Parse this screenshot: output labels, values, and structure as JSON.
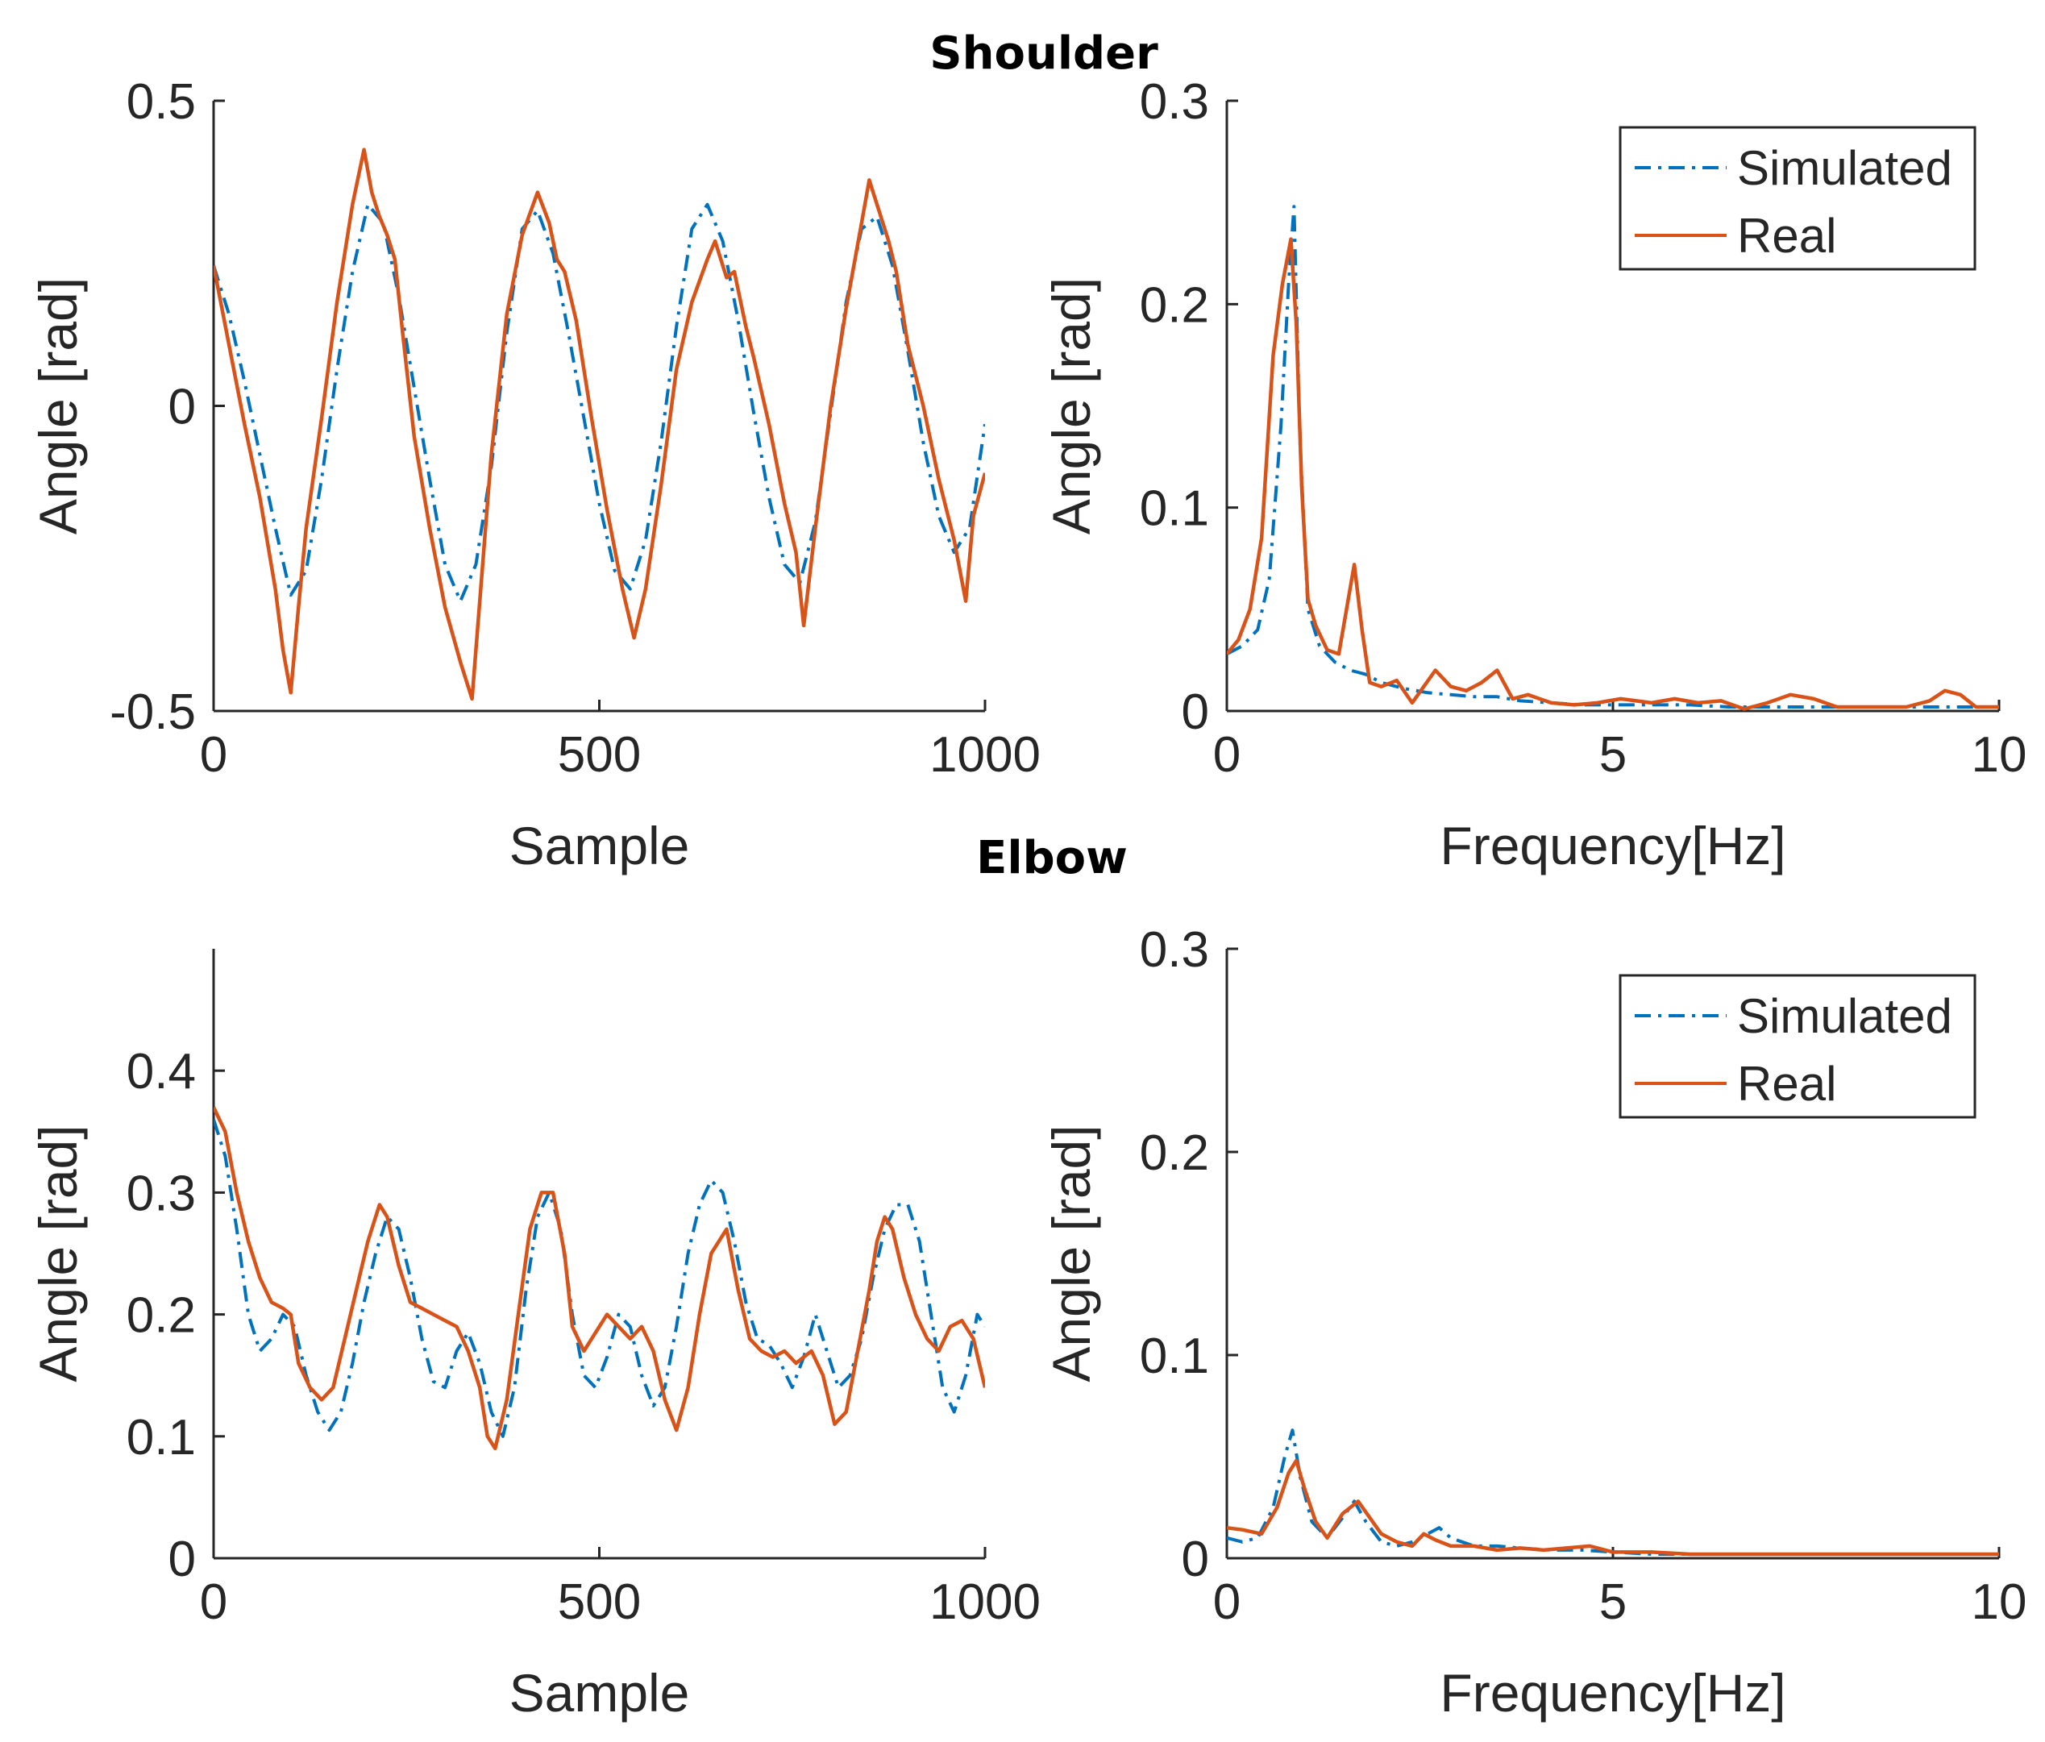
{
  "section_titles": [
    "Shoulder",
    "Elbow"
  ],
  "colors": {
    "simulated": "#0072BD",
    "real": "#D95319",
    "axis": "#262626"
  },
  "chart_data": [
    {
      "id": "shoulder-time",
      "type": "line",
      "xlabel": "Sample",
      "ylabel": "Angle [rad]",
      "xlim": [
        0,
        1000
      ],
      "ylim": [
        -0.5,
        0.5
      ],
      "xticks": [
        0,
        500,
        1000
      ],
      "xtick_labels": [
        "0",
        "500",
        "1000"
      ],
      "yticks": [
        -0.5,
        0,
        0.5
      ],
      "ytick_labels": [
        "-0.5",
        "0",
        "0.5"
      ],
      "grid": false,
      "legend": null,
      "series": [
        {
          "name": "Simulated",
          "style": "dashdot",
          "x": [
            0,
            20,
            40,
            60,
            80,
            100,
            120,
            140,
            160,
            180,
            200,
            220,
            240,
            260,
            280,
            300,
            320,
            340,
            360,
            380,
            400,
            420,
            440,
            460,
            480,
            500,
            520,
            540,
            560,
            580,
            600,
            620,
            640,
            660,
            680,
            700,
            720,
            740,
            760,
            780,
            800,
            820,
            840,
            860,
            880,
            900,
            920,
            940,
            960,
            980,
            1000
          ],
          "y": [
            0.23,
            0.15,
            0.04,
            -0.08,
            -0.2,
            -0.31,
            -0.27,
            -0.12,
            0.06,
            0.22,
            0.33,
            0.3,
            0.18,
            0.03,
            -0.12,
            -0.26,
            -0.32,
            -0.26,
            -0.1,
            0.12,
            0.29,
            0.32,
            0.25,
            0.12,
            -0.02,
            -0.16,
            -0.27,
            -0.3,
            -0.22,
            -0.06,
            0.13,
            0.29,
            0.33,
            0.27,
            0.14,
            -0.01,
            -0.15,
            -0.26,
            -0.29,
            -0.19,
            -0.01,
            0.17,
            0.29,
            0.31,
            0.23,
            0.09,
            -0.06,
            -0.18,
            -0.24,
            -0.2,
            -0.03
          ]
        },
        {
          "name": "Real",
          "style": "solid",
          "x": [
            0,
            20,
            40,
            60,
            80,
            90,
            100,
            110,
            120,
            140,
            160,
            180,
            195,
            205,
            215,
            225,
            235,
            245,
            260,
            280,
            300,
            320,
            335,
            345,
            360,
            380,
            400,
            420,
            435,
            445,
            455,
            470,
            490,
            510,
            530,
            545,
            560,
            580,
            600,
            620,
            640,
            650,
            665,
            675,
            690,
            700,
            720,
            740,
            755,
            765,
            780,
            800,
            820,
            840,
            850,
            860,
            875,
            885,
            900,
            920,
            940,
            960,
            975,
            985,
            1000
          ],
          "y": [
            0.23,
            0.1,
            -0.03,
            -0.15,
            -0.3,
            -0.4,
            -0.47,
            -0.33,
            -0.2,
            -0.02,
            0.17,
            0.33,
            0.42,
            0.35,
            0.31,
            0.28,
            0.24,
            0.12,
            -0.05,
            -0.2,
            -0.33,
            -0.42,
            -0.48,
            -0.32,
            -0.08,
            0.15,
            0.28,
            0.35,
            0.3,
            0.24,
            0.22,
            0.14,
            -0.02,
            -0.17,
            -0.3,
            -0.38,
            -0.3,
            -0.13,
            0.06,
            0.17,
            0.24,
            0.27,
            0.21,
            0.22,
            0.13,
            0.08,
            -0.03,
            -0.16,
            -0.24,
            -0.36,
            -0.2,
            0.0,
            0.16,
            0.3,
            0.37,
            0.33,
            0.27,
            0.22,
            0.1,
            0.0,
            -0.12,
            -0.22,
            -0.32,
            -0.18,
            -0.11
          ]
        }
      ]
    },
    {
      "id": "shoulder-freq",
      "type": "line",
      "xlabel": "Frequency[Hz]",
      "ylabel": "Angle [rad]",
      "xlim": [
        0,
        10
      ],
      "ylim": [
        0,
        0.3
      ],
      "xticks": [
        0,
        5,
        10
      ],
      "xtick_labels": [
        "0",
        "5",
        "10"
      ],
      "yticks": [
        0,
        0.1,
        0.2,
        0.3
      ],
      "ytick_labels": [
        "0",
        "0.1",
        "0.2",
        "0.3"
      ],
      "grid": false,
      "legend": "top-right",
      "series": [
        {
          "name": "Simulated",
          "style": "dashdot",
          "x": [
            0,
            0.2,
            0.4,
            0.55,
            0.7,
            0.8,
            0.87,
            0.95,
            1.05,
            1.2,
            1.4,
            1.6,
            1.8,
            2.0,
            2.3,
            2.6,
            2.9,
            3.2,
            3.5,
            3.8,
            4.2,
            4.6,
            5.0,
            5.5,
            6.0,
            6.5,
            7.0,
            7.5,
            8.0,
            8.5,
            9.0,
            9.5,
            10
          ],
          "y": [
            0.028,
            0.032,
            0.04,
            0.065,
            0.14,
            0.21,
            0.248,
            0.13,
            0.05,
            0.032,
            0.024,
            0.02,
            0.018,
            0.014,
            0.011,
            0.009,
            0.008,
            0.007,
            0.007,
            0.005,
            0.004,
            0.003,
            0.003,
            0.003,
            0.003,
            0.002,
            0.002,
            0.002,
            0.002,
            0.002,
            0.002,
            0.002,
            0.002
          ]
        },
        {
          "name": "Real",
          "style": "solid",
          "x": [
            0,
            0.15,
            0.3,
            0.45,
            0.6,
            0.72,
            0.83,
            0.9,
            0.97,
            1.05,
            1.15,
            1.3,
            1.45,
            1.55,
            1.65,
            1.75,
            1.85,
            2.0,
            2.2,
            2.4,
            2.55,
            2.7,
            2.9,
            3.1,
            3.3,
            3.5,
            3.7,
            3.9,
            4.2,
            4.5,
            4.8,
            5.1,
            5.5,
            5.8,
            6.1,
            6.4,
            6.7,
            7.0,
            7.3,
            7.6,
            7.9,
            8.2,
            8.5,
            8.8,
            9.1,
            9.3,
            9.5,
            9.7,
            10
          ],
          "y": [
            0.028,
            0.035,
            0.05,
            0.085,
            0.175,
            0.21,
            0.232,
            0.19,
            0.11,
            0.055,
            0.042,
            0.03,
            0.028,
            0.05,
            0.072,
            0.04,
            0.014,
            0.012,
            0.015,
            0.004,
            0.012,
            0.02,
            0.012,
            0.01,
            0.014,
            0.02,
            0.006,
            0.008,
            0.004,
            0.003,
            0.004,
            0.006,
            0.004,
            0.006,
            0.004,
            0.005,
            0.001,
            0.004,
            0.008,
            0.006,
            0.002,
            0.002,
            0.002,
            0.002,
            0.005,
            0.01,
            0.008,
            0.002,
            0.002
          ]
        }
      ]
    },
    {
      "id": "elbow-time",
      "type": "line",
      "xlabel": "Sample",
      "ylabel": "Angle [rad]",
      "xlim": [
        0,
        1000
      ],
      "ylim": [
        0,
        0.5
      ],
      "xticks": [
        0,
        500,
        1000
      ],
      "xtick_labels": [
        "0",
        "500",
        "1000"
      ],
      "yticks": [
        0,
        0.1,
        0.2,
        0.3,
        0.4
      ],
      "ytick_labels": [
        "0",
        "0.1",
        "0.2",
        "0.3",
        "0.4"
      ],
      "grid": false,
      "legend": null,
      "series": [
        {
          "name": "Simulated",
          "style": "dashdot",
          "x": [
            0,
            15,
            30,
            45,
            60,
            75,
            90,
            105,
            120,
            135,
            150,
            165,
            180,
            195,
            210,
            225,
            240,
            255,
            270,
            285,
            300,
            315,
            330,
            345,
            360,
            375,
            390,
            405,
            420,
            435,
            450,
            465,
            480,
            495,
            510,
            525,
            540,
            555,
            570,
            585,
            600,
            615,
            630,
            645,
            660,
            675,
            690,
            705,
            720,
            735,
            750,
            765,
            780,
            795,
            810,
            825,
            840,
            855,
            870,
            885,
            900,
            915,
            930,
            945,
            960,
            975,
            990,
            1000
          ],
          "y": [
            0.36,
            0.33,
            0.27,
            0.2,
            0.17,
            0.18,
            0.2,
            0.19,
            0.15,
            0.12,
            0.105,
            0.12,
            0.16,
            0.21,
            0.25,
            0.28,
            0.27,
            0.23,
            0.18,
            0.145,
            0.14,
            0.17,
            0.185,
            0.16,
            0.12,
            0.1,
            0.14,
            0.22,
            0.28,
            0.3,
            0.27,
            0.2,
            0.15,
            0.14,
            0.165,
            0.2,
            0.19,
            0.15,
            0.125,
            0.14,
            0.19,
            0.25,
            0.29,
            0.31,
            0.3,
            0.26,
            0.21,
            0.18,
            0.175,
            0.16,
            0.14,
            0.165,
            0.2,
            0.17,
            0.14,
            0.15,
            0.18,
            0.23,
            0.27,
            0.29,
            0.29,
            0.26,
            0.2,
            0.14,
            0.12,
            0.15,
            0.2,
            0.19
          ]
        },
        {
          "name": "Real",
          "style": "solid",
          "x": [
            0,
            15,
            30,
            45,
            60,
            75,
            90,
            100,
            110,
            125,
            140,
            155,
            170,
            185,
            200,
            215,
            225,
            240,
            255,
            270,
            285,
            300,
            315,
            330,
            345,
            355,
            365,
            380,
            395,
            410,
            425,
            440,
            455,
            465,
            480,
            495,
            510,
            525,
            540,
            555,
            570,
            585,
            600,
            615,
            630,
            645,
            655,
            665,
            680,
            695,
            710,
            725,
            740,
            755,
            765,
            775,
            790,
            805,
            820,
            835,
            850,
            860,
            870,
            880,
            895,
            910,
            925,
            940,
            955,
            970,
            985,
            1000
          ],
          "y": [
            0.37,
            0.35,
            0.3,
            0.26,
            0.23,
            0.21,
            0.205,
            0.2,
            0.16,
            0.14,
            0.13,
            0.14,
            0.18,
            0.22,
            0.26,
            0.29,
            0.28,
            0.24,
            0.21,
            0.205,
            0.2,
            0.195,
            0.19,
            0.17,
            0.14,
            0.1,
            0.09,
            0.13,
            0.2,
            0.27,
            0.3,
            0.3,
            0.25,
            0.19,
            0.17,
            0.185,
            0.2,
            0.19,
            0.18,
            0.19,
            0.17,
            0.13,
            0.105,
            0.14,
            0.2,
            0.25,
            0.26,
            0.27,
            0.22,
            0.18,
            0.17,
            0.165,
            0.17,
            0.16,
            0.165,
            0.17,
            0.15,
            0.11,
            0.12,
            0.17,
            0.22,
            0.26,
            0.28,
            0.27,
            0.23,
            0.2,
            0.18,
            0.17,
            0.19,
            0.195,
            0.18,
            0.14
          ]
        }
      ]
    },
    {
      "id": "elbow-freq",
      "type": "line",
      "xlabel": "Frequency[Hz]",
      "ylabel": "Angle [rad]",
      "xlim": [
        0,
        10
      ],
      "ylim": [
        0,
        0.3
      ],
      "xticks": [
        0,
        5,
        10
      ],
      "xtick_labels": [
        "0",
        "5",
        "10"
      ],
      "yticks": [
        0,
        0.1,
        0.2,
        0.3
      ],
      "ytick_labels": [
        "0",
        "0.1",
        "0.2",
        "0.3"
      ],
      "grid": false,
      "legend": "top-right",
      "series": [
        {
          "name": "Simulated",
          "style": "dashdot",
          "x": [
            0,
            0.2,
            0.4,
            0.6,
            0.75,
            0.85,
            0.95,
            1.1,
            1.3,
            1.5,
            1.65,
            1.8,
            2.0,
            2.2,
            2.4,
            2.6,
            2.75,
            2.9,
            3.2,
            3.5,
            3.8,
            4.2,
            4.6,
            5.0,
            5.5,
            6.0,
            6.5,
            7.0,
            7.5,
            8.0,
            8.5,
            9.0,
            9.5,
            10
          ],
          "y": [
            0.01,
            0.008,
            0.01,
            0.025,
            0.05,
            0.063,
            0.04,
            0.018,
            0.01,
            0.02,
            0.028,
            0.018,
            0.008,
            0.006,
            0.008,
            0.012,
            0.015,
            0.01,
            0.006,
            0.006,
            0.005,
            0.004,
            0.004,
            0.003,
            0.002,
            0.002,
            0.002,
            0.002,
            0.002,
            0.002,
            0.002,
            0.002,
            0.002,
            0.002
          ]
        },
        {
          "name": "Real",
          "style": "solid",
          "x": [
            0,
            0.2,
            0.45,
            0.65,
            0.8,
            0.9,
            1.0,
            1.15,
            1.3,
            1.5,
            1.7,
            1.85,
            2.0,
            2.2,
            2.4,
            2.55,
            2.7,
            2.9,
            3.2,
            3.5,
            3.8,
            4.1,
            4.4,
            4.7,
            5.0,
            5.5,
            6.0,
            6.5,
            7.0,
            7.5,
            8.0,
            8.5,
            9.0,
            9.5,
            10
          ],
          "y": [
            0.015,
            0.014,
            0.012,
            0.025,
            0.042,
            0.048,
            0.035,
            0.018,
            0.01,
            0.022,
            0.028,
            0.02,
            0.012,
            0.008,
            0.006,
            0.012,
            0.009,
            0.006,
            0.006,
            0.004,
            0.005,
            0.004,
            0.005,
            0.006,
            0.003,
            0.003,
            0.002,
            0.002,
            0.002,
            0.002,
            0.002,
            0.002,
            0.002,
            0.002,
            0.002
          ]
        }
      ]
    }
  ]
}
